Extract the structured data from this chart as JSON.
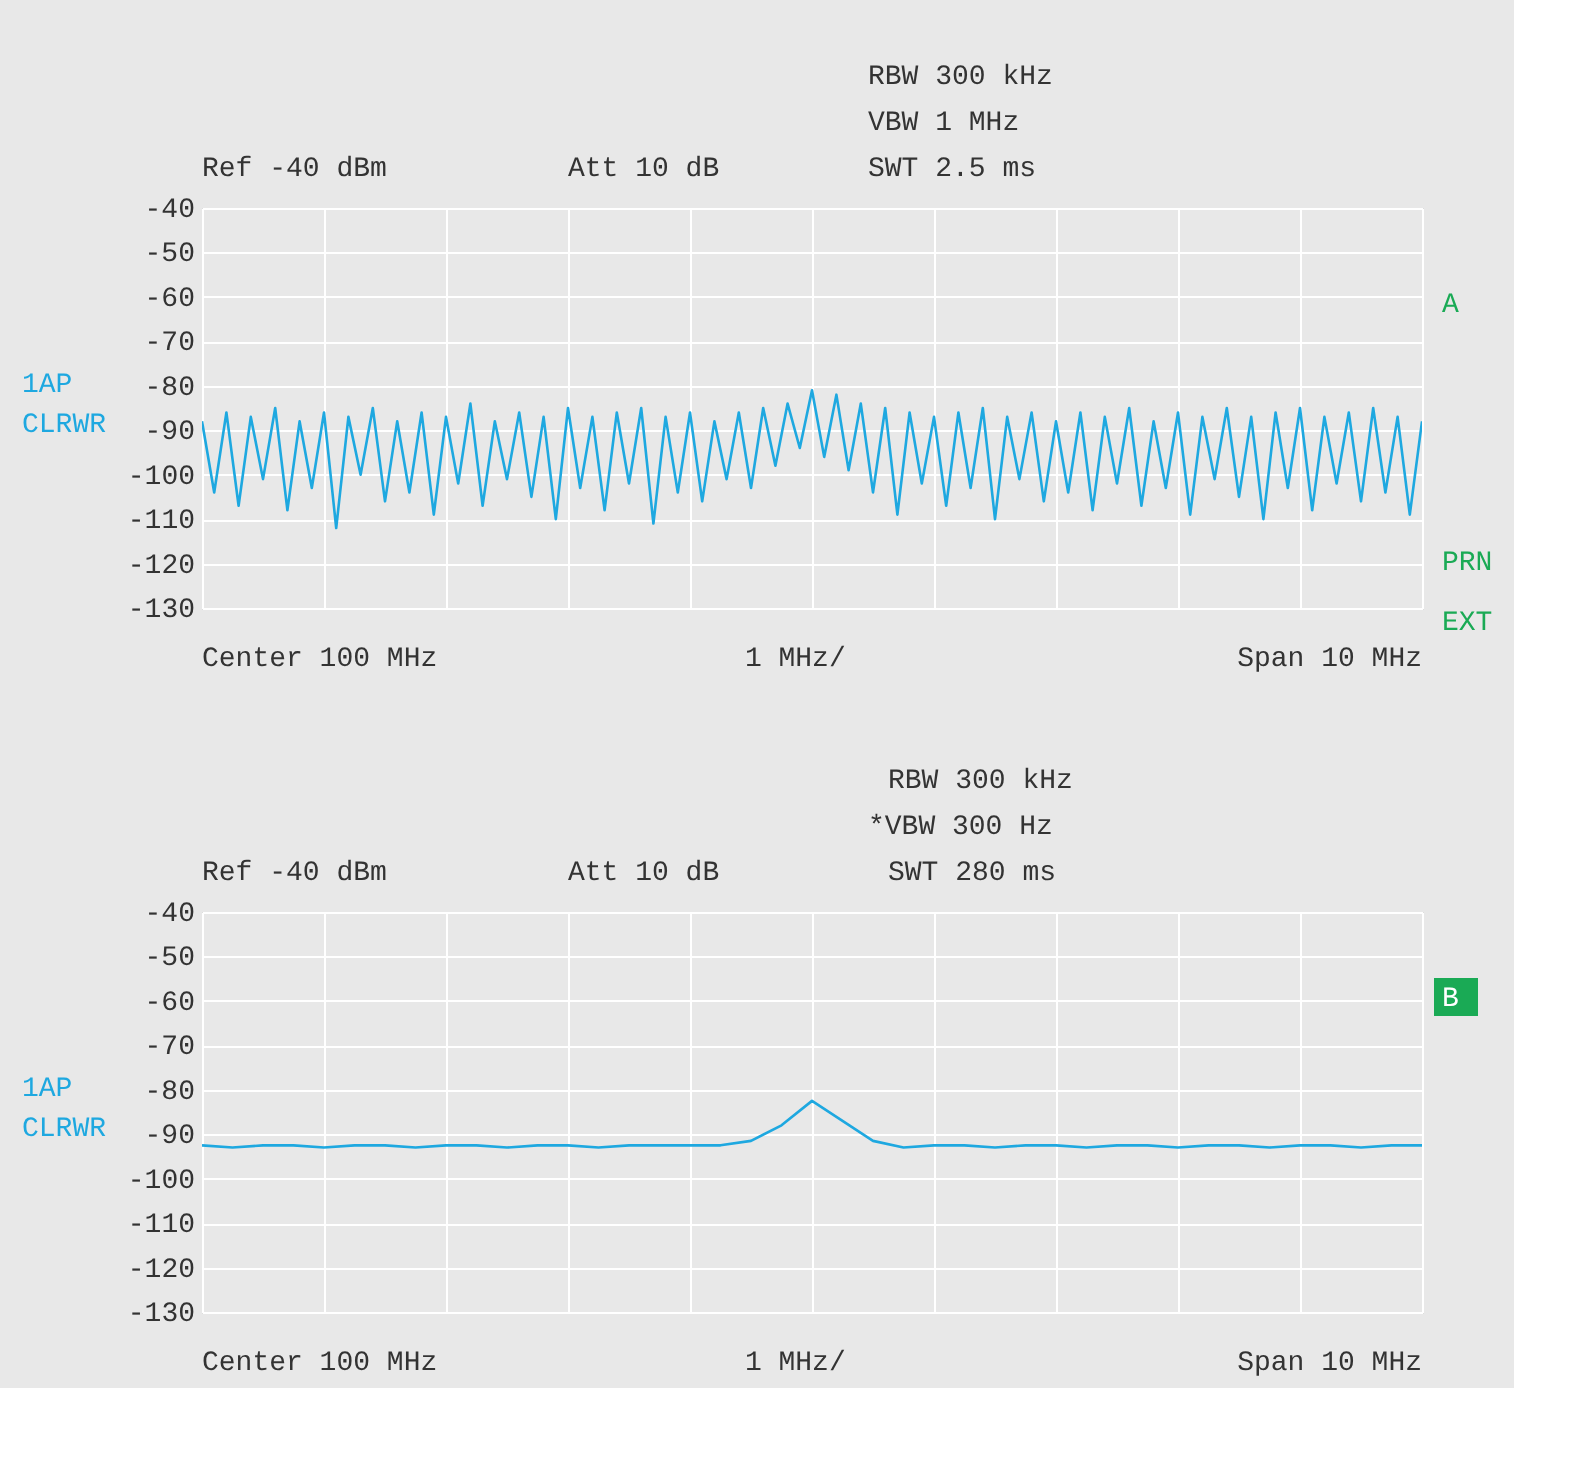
{
  "chart_data": [
    {
      "type": "line",
      "categories": [
        null,
        null,
        null,
        null,
        null,
        null,
        null,
        null,
        null,
        null,
        null,
        null,
        null,
        null,
        null,
        null,
        null,
        null,
        null,
        null,
        null,
        null,
        null,
        null,
        null,
        null,
        null,
        null,
        null,
        null,
        null,
        null,
        null,
        null,
        null,
        null,
        null,
        null,
        null,
        null,
        null,
        null,
        null,
        null,
        null,
        null,
        null,
        null,
        null,
        null,
        null,
        null,
        null,
        null,
        null,
        null,
        null,
        null,
        null,
        null,
        null,
        null,
        null,
        null,
        null,
        null,
        null,
        null,
        null,
        null,
        null,
        null,
        null,
        null,
        null,
        null,
        null,
        null,
        null,
        null,
        null,
        null,
        null,
        null,
        null,
        null,
        null,
        null,
        null,
        null,
        null,
        null,
        null,
        null,
        null,
        null,
        null,
        null,
        null,
        null,
        null
      ],
      "series": [
        {
          "color": "#1ea8e0",
          "values": [
            -88,
            -104,
            -86,
            -107,
            -87,
            -101,
            -85,
            -108,
            -88,
            -103,
            -86,
            -112,
            -87,
            -100,
            -85,
            -106,
            -88,
            -104,
            -86,
            -109,
            -87,
            -102,
            -84,
            -107,
            -88,
            -101,
            -86,
            -105,
            -87,
            -110,
            -85,
            -103,
            -87,
            -108,
            -86,
            -102,
            -85,
            -111,
            -87,
            -104,
            -86,
            -106,
            -88,
            -101,
            -86,
            -103,
            -85,
            -98,
            -84,
            -94,
            -81,
            -96,
            -82,
            -99,
            -84,
            -104,
            -85,
            -109,
            -86,
            -102,
            -87,
            -107,
            -86,
            -103,
            -85,
            -110,
            -87,
            -101,
            -86,
            -106,
            -88,
            -104,
            -86,
            -108,
            -87,
            -102,
            -85,
            -107,
            -88,
            -103,
            -86,
            -109,
            -87,
            -101,
            -85,
            -105,
            -87,
            -110,
            -86,
            -103,
            -85,
            -108,
            -87,
            -102,
            -86,
            -106,
            -85,
            -104,
            -87,
            -109,
            -88
          ]
        }
      ],
      "ylim": [
        -130,
        -40
      ],
      "yticks": [
        -40,
        -50,
        -60,
        -70,
        -80,
        -90,
        -100,
        -110,
        -120,
        -130
      ],
      "grid": true,
      "tick_labels": "y",
      "line_style": "solid",
      "annotations": [
        "Ref -40 dBm",
        "Att 10 dB",
        "RBW 300 kHz",
        "VBW 1 MHz",
        "SWT 2.5 ms",
        "1AP",
        "CLRWR",
        "A",
        "PRN",
        "EXT",
        "Center 100 MHz",
        "1 MHz/",
        "Span 10 MHz"
      ]
    },
    {
      "type": "line",
      "categories": [
        null,
        null,
        null,
        null,
        null,
        null,
        null,
        null,
        null,
        null,
        null,
        null,
        null,
        null,
        null,
        null,
        null,
        null,
        null,
        null,
        null,
        null,
        null,
        null,
        null,
        null,
        null,
        null,
        null,
        null,
        null,
        null,
        null,
        null,
        null,
        null,
        null,
        null,
        null,
        null,
        null
      ],
      "series": [
        {
          "color": "#1ea8e0",
          "values": [
            -92.5,
            -93,
            -92.5,
            -92.5,
            -93,
            -92.5,
            -92.5,
            -93,
            -92.5,
            -92.5,
            -93,
            -92.5,
            -92.5,
            -93,
            -92.5,
            -92.5,
            -92.5,
            -92.5,
            -91.5,
            -88,
            -82.5,
            -87,
            -91.5,
            -93,
            -92.5,
            -92.5,
            -93,
            -92.5,
            -92.5,
            -93,
            -92.5,
            -92.5,
            -93,
            -92.5,
            -92.5,
            -93,
            -92.5,
            -92.5,
            -93,
            -92.5,
            -92.5
          ]
        }
      ],
      "ylim": [
        -130,
        -40
      ],
      "yticks": [
        -40,
        -50,
        -60,
        -70,
        -80,
        -90,
        -100,
        -110,
        -120,
        -130
      ],
      "grid": true,
      "tick_labels": "y",
      "line_style": "solid",
      "annotations": [
        "Ref -40 dBm",
        "Att 10 dB",
        "RBW 300 kHz",
        "*VBW 300 Hz",
        "SWT 280 ms",
        "1AP",
        "CLRWR",
        "B",
        "Center 100 MHz",
        "1 MHz/",
        "Span 10 MHz"
      ]
    }
  ]
}
